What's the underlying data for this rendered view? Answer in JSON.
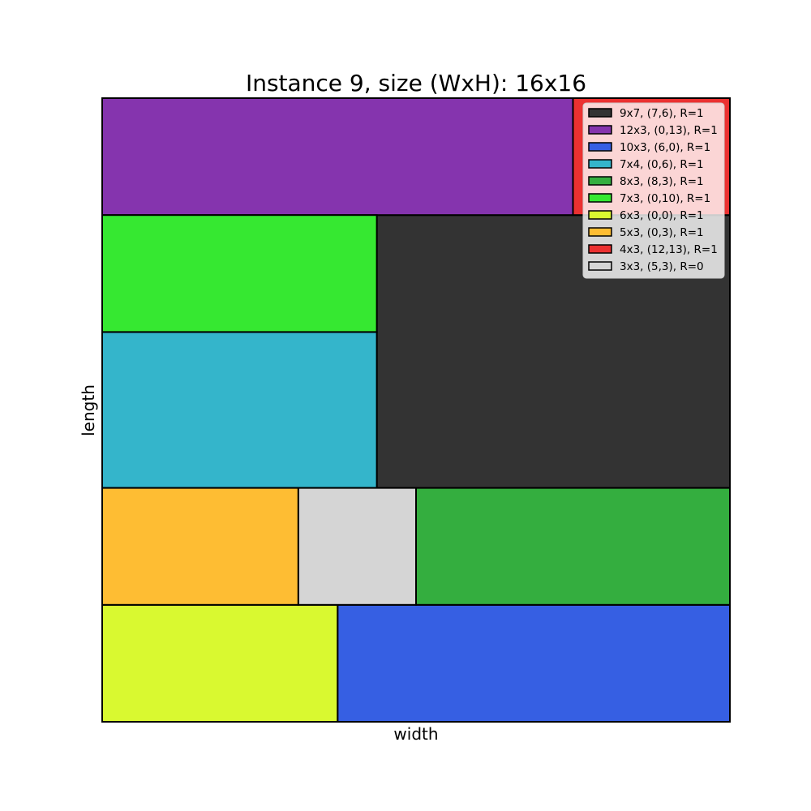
{
  "chart_data": {
    "type": "packing",
    "title": "Instance 9, size (WxH): 16x16",
    "xlabel": "width",
    "ylabel": "length",
    "container": {
      "width": 16,
      "height": 16
    },
    "xlim": [
      0,
      16
    ],
    "ylim": [
      0,
      16
    ],
    "grid": false,
    "legend_position": "top-right",
    "rectangles": [
      {
        "label": "9x7, (7,6), R=1",
        "x": 7,
        "y": 6,
        "w": 9,
        "h": 7,
        "color": "#333333"
      },
      {
        "label": "12x3, (0,13), R=1",
        "x": 0,
        "y": 13,
        "w": 12,
        "h": 3,
        "color": "#8534AE"
      },
      {
        "label": "10x3, (6,0), R=1",
        "x": 6,
        "y": 0,
        "w": 10,
        "h": 3,
        "color": "#365FE3"
      },
      {
        "label": "7x4, (0,6), R=1",
        "x": 0,
        "y": 6,
        "w": 7,
        "h": 4,
        "color": "#34B5CB"
      },
      {
        "label": "8x3, (8,3), R=1",
        "x": 8,
        "y": 3,
        "w": 8,
        "h": 3,
        "color": "#34AE3F"
      },
      {
        "label": "7x3, (0,10), R=1",
        "x": 0,
        "y": 10,
        "w": 7,
        "h": 3,
        "color": "#36E831"
      },
      {
        "label": "6x3, (0,0), R=1",
        "x": 0,
        "y": 0,
        "w": 6,
        "h": 3,
        "color": "#D9F930"
      },
      {
        "label": "5x3, (0,3), R=1",
        "x": 0,
        "y": 3,
        "w": 5,
        "h": 3,
        "color": "#FEBD33"
      },
      {
        "label": "4x3, (12,13), R=1",
        "x": 12,
        "y": 13,
        "w": 4,
        "h": 3,
        "color": "#EB3131"
      },
      {
        "label": "3x3, (5,3), R=0",
        "x": 5,
        "y": 3,
        "w": 3,
        "h": 3,
        "color": "#D5D5D5"
      }
    ]
  }
}
